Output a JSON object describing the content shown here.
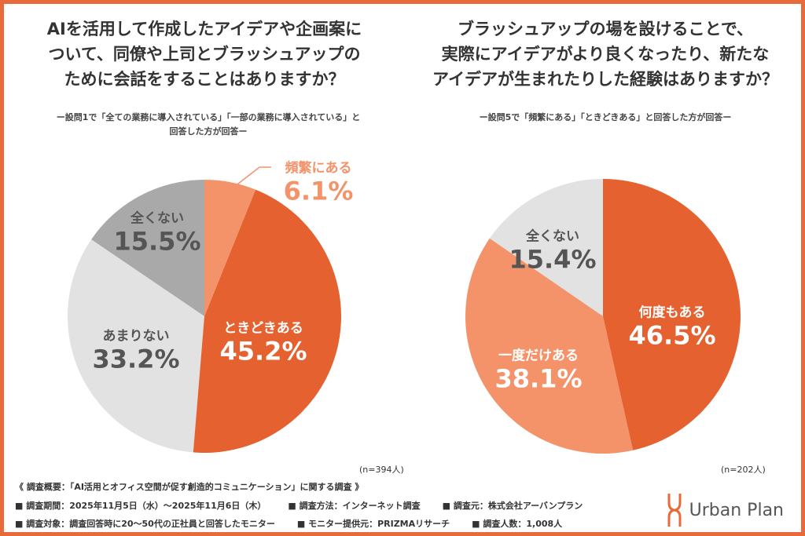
{
  "chart_data": [
    {
      "type": "pie",
      "title": "AIを活用して作成したアイデアや企画案について、同僚や上司とブラッシュアップのために会話をすることはありますか？",
      "subtitle": "ー設問1で「全ての業務に導入されている」「一部の業務に導入されている」と回答した方が回答ー",
      "note": "(n=394人)",
      "slices": [
        {
          "label": "頻繁にある",
          "value": 6.1,
          "display": "6.1%",
          "color": "#F4936A"
        },
        {
          "label": "ときどきある",
          "value": 45.2,
          "display": "45.2%",
          "color": "#E5612F"
        },
        {
          "label": "あまりない",
          "value": 33.2,
          "display": "33.2%",
          "color": "#E2E2E2"
        },
        {
          "label": "全くない",
          "value": 15.5,
          "display": "15.5%",
          "color": "#A9A9A9"
        }
      ]
    },
    {
      "type": "pie",
      "title": "ブラッシュアップの場を設けることで、実際にアイデアがより良くなったり、新たなアイデアが生まれたりした経験はありますか？",
      "subtitle": "ー設問5で「頻繁にある」「ときどきある」と回答した方が回答ー",
      "note": "(n=202人)",
      "slices": [
        {
          "label": "何度もある",
          "value": 46.5,
          "display": "46.5%",
          "color": "#E5612F"
        },
        {
          "label": "一度だけある",
          "value": 38.1,
          "display": "38.1%",
          "color": "#F4936A"
        },
        {
          "label": "全くない",
          "value": 15.4,
          "display": "15.4%",
          "color": "#E2E2E2"
        }
      ]
    }
  ],
  "titles": {
    "left": [
      "AIを活用して作成したアイデアや企画案に",
      "ついて、同僚や上司とブラッシュアップの",
      "ために会話をすることはありますか？"
    ],
    "right": [
      "ブラッシュアップの場を設けることで、",
      "実際にアイデアがより良くなったり、新たな",
      "アイデアが生まれたりした経験はありますか？"
    ],
    "left_sub": [
      "ー設問1で「全ての業務に導入されている」「一部の業務に導入されている」と",
      "回答した方が回答ー"
    ]
  },
  "footer": {
    "line1": "《 調査概要：「AI活用とオフィス空間が促す創造的コミュニケーション」に関する調査 》",
    "line2": [
      "■ 調査期間：2025年11月5日（水）～2025年11月6日（木）",
      "■ 調査方法：インターネット調査",
      "■ 調査元：株式会社アーバンプラン"
    ],
    "line3": [
      "■ 調査対象：調査回答時に20～50代の正社員と回答したモニター",
      "■ モニター提供元：PRIZMAリサーチ",
      "■ 調査人数：1,008人"
    ],
    "logo": "Urban Plan"
  }
}
